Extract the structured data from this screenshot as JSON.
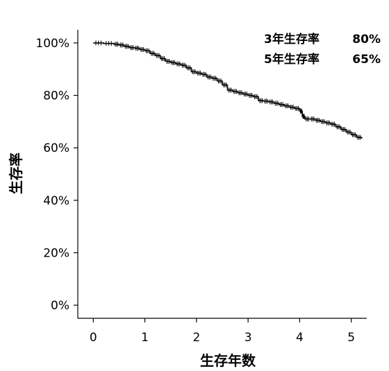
{
  "chart_data": {
    "type": "line",
    "title": "",
    "xlabel": "生存年数",
    "ylabel": "生存率",
    "xlim": [
      -0.3,
      5.3
    ],
    "ylim": [
      -5,
      105
    ],
    "x_ticks": [
      0,
      1,
      2,
      3,
      4,
      5
    ],
    "x_tick_labels": [
      "0",
      "1",
      "2",
      "3",
      "4",
      "5"
    ],
    "y_ticks": [
      0,
      20,
      40,
      60,
      80,
      100
    ],
    "y_tick_labels": [
      "0%",
      "20%",
      "40%",
      "60%",
      "80%",
      "100%"
    ],
    "grid": false,
    "legend": "none",
    "annotations": [
      {
        "label": "3年生存率",
        "value": "80%"
      },
      {
        "label": "5年生存率",
        "value": "65%"
      }
    ],
    "series": [
      {
        "color": "#000000",
        "step": true,
        "censor_marks": true,
        "x": [
          0,
          0.2,
          0.4,
          0.5,
          0.6,
          0.7,
          0.8,
          0.9,
          1.0,
          1.1,
          1.2,
          1.3,
          1.4,
          1.5,
          1.6,
          1.7,
          1.8,
          1.9,
          2.0,
          2.1,
          2.2,
          2.3,
          2.4,
          2.5,
          2.6,
          2.7,
          2.8,
          2.9,
          3.0,
          3.1,
          3.2,
          3.3,
          3.4,
          3.5,
          3.6,
          3.7,
          3.8,
          3.9,
          4.0,
          4.05,
          4.1,
          4.2,
          4.3,
          4.4,
          4.5,
          4.6,
          4.7,
          4.8,
          4.9,
          5.0,
          5.1,
          5.2
        ],
        "y": [
          100,
          99.8,
          99.5,
          99.2,
          98.7,
          98.2,
          98.0,
          97.5,
          97.0,
          96.0,
          95.2,
          94.0,
          93.0,
          92.5,
          92.0,
          91.5,
          90.5,
          89.0,
          88.5,
          88.0,
          87.0,
          86.5,
          85.5,
          84.0,
          82.0,
          81.5,
          81.0,
          80.5,
          80.0,
          79.5,
          78.0,
          77.8,
          77.5,
          77.0,
          76.5,
          76.0,
          75.5,
          75.0,
          74.0,
          72.0,
          71.0,
          71.0,
          70.5,
          70.0,
          69.5,
          69.0,
          68.0,
          67.0,
          66.0,
          65.0,
          64.0,
          63.5
        ]
      }
    ]
  }
}
